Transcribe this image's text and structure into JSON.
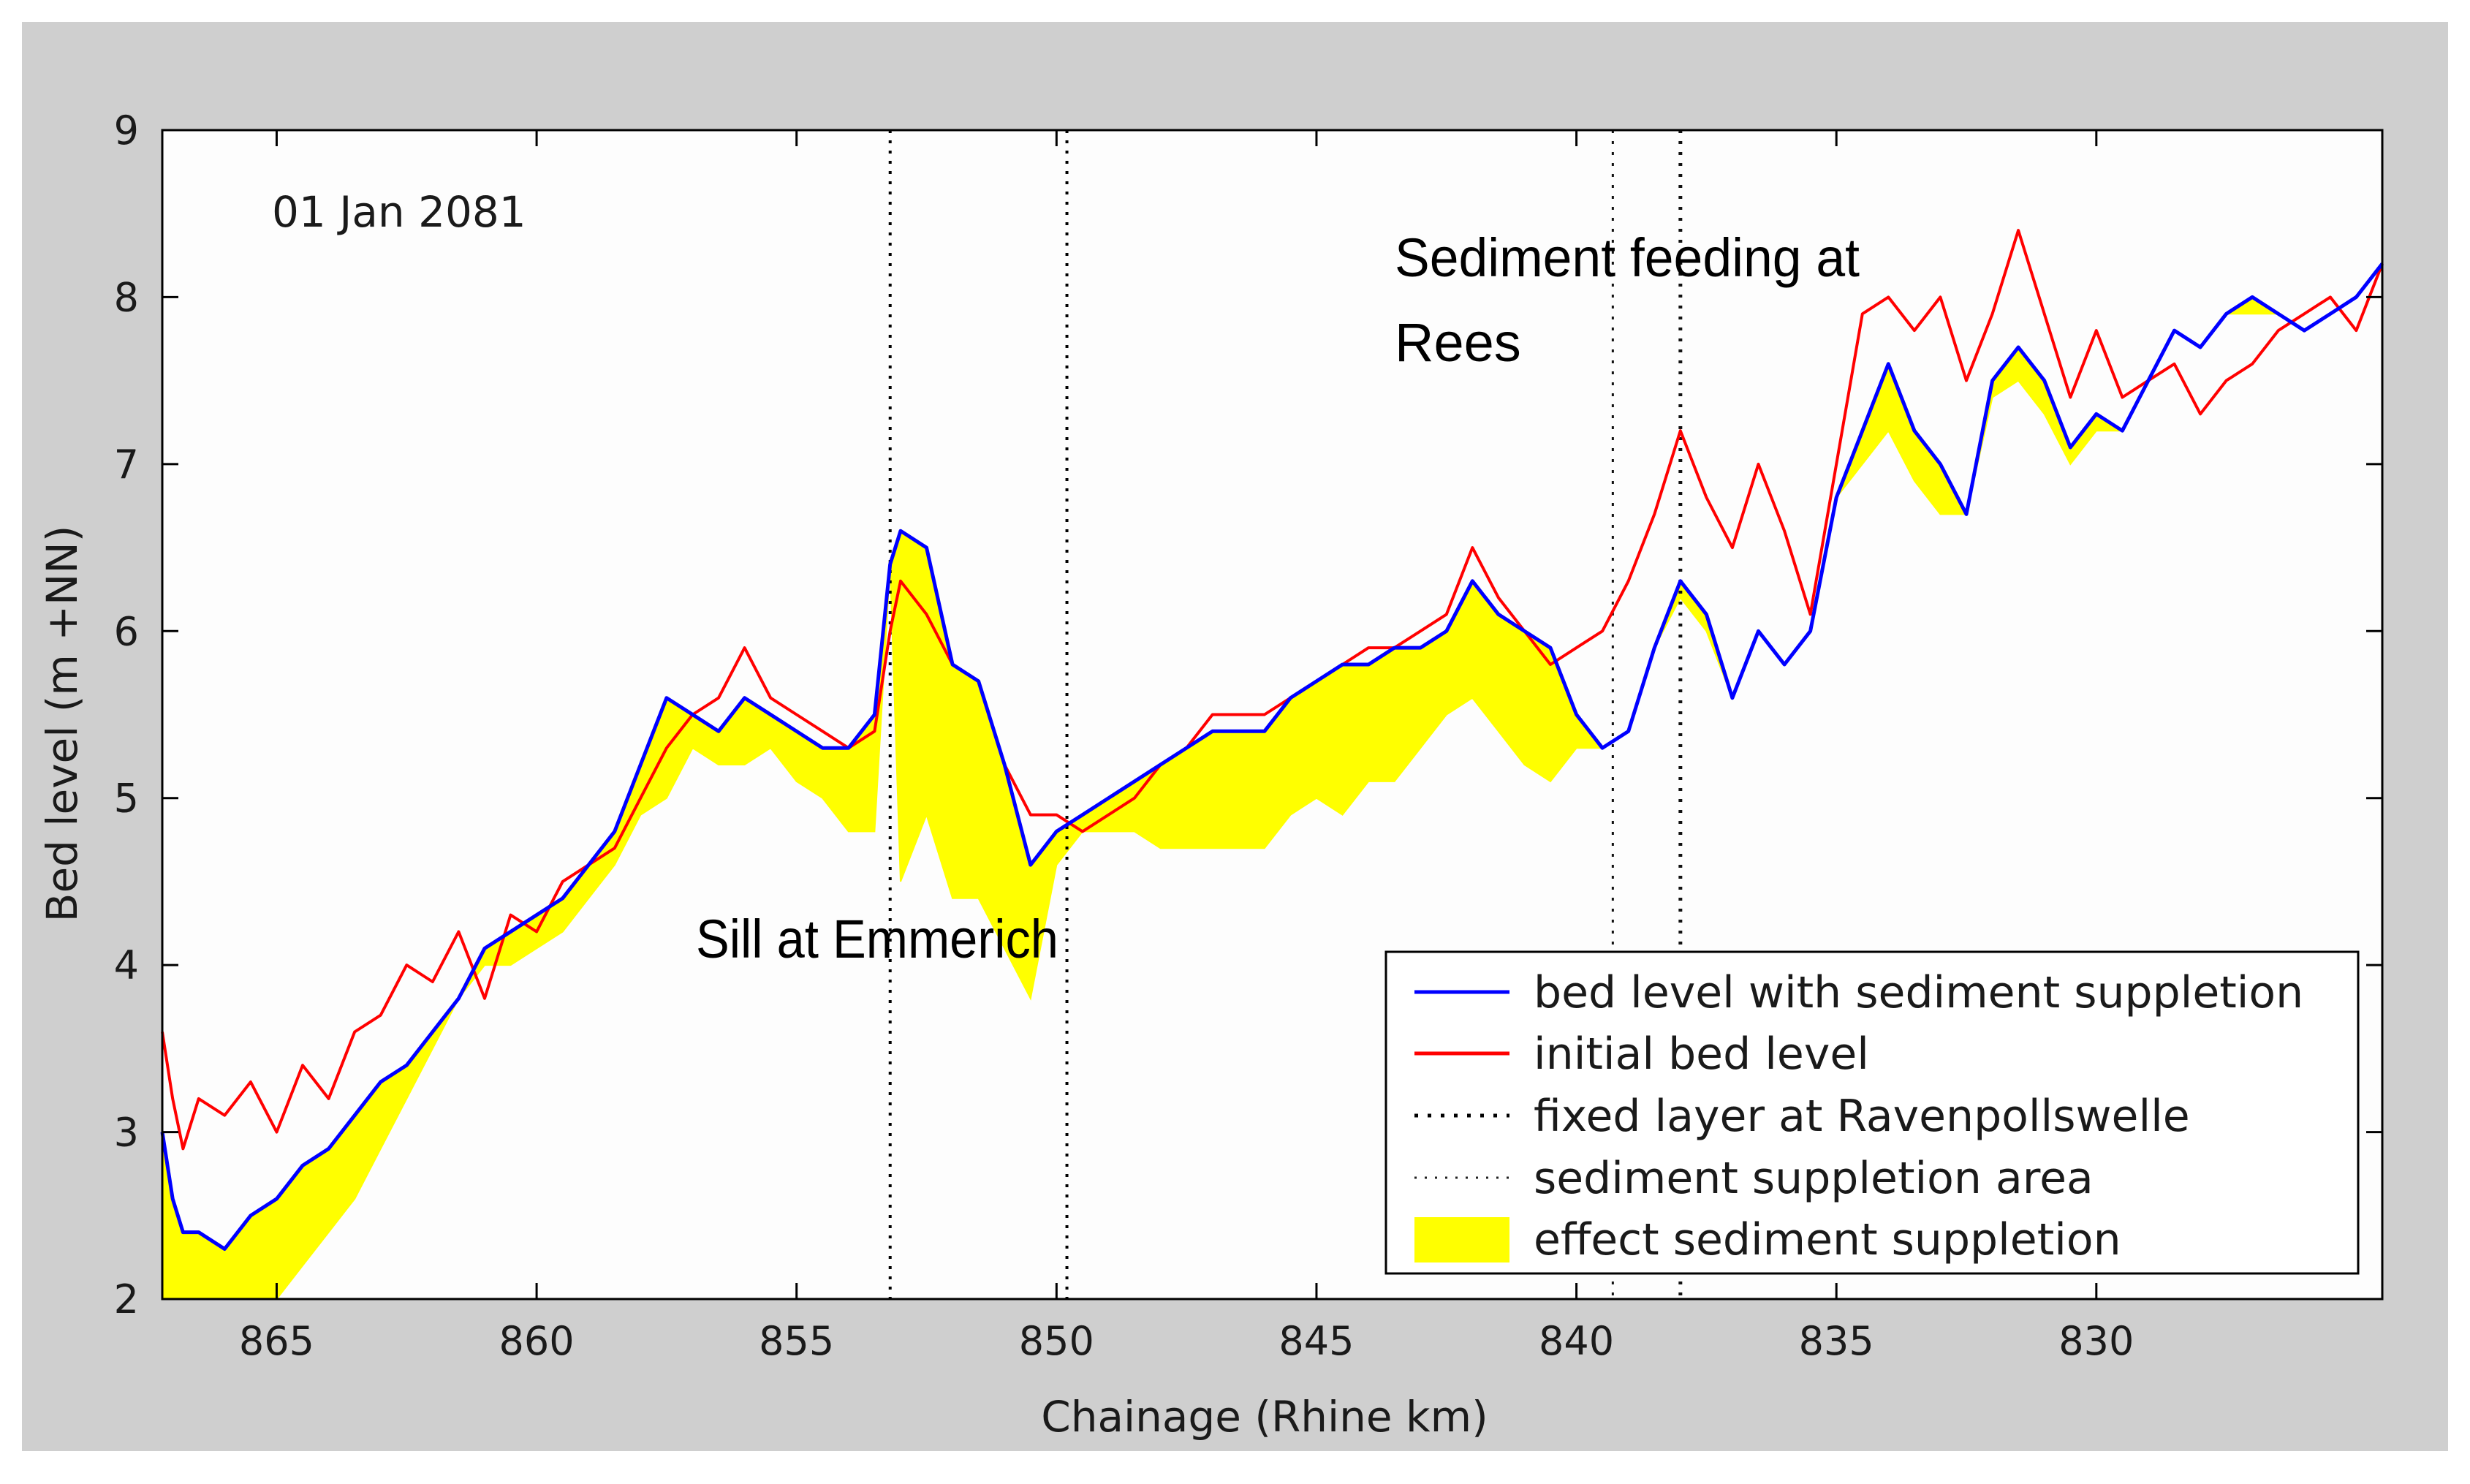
{
  "chart_data": {
    "type": "line",
    "date": "01 Jan 2081",
    "xlabel": "Chainage (Rhine km)",
    "ylabel": "Bed level (m +NN)",
    "xlim": [
      867.2,
      824.5
    ],
    "ylim": [
      2,
      9
    ],
    "x_ticks": [
      865,
      860,
      855,
      850,
      845,
      840,
      835,
      830
    ],
    "y_ticks": [
      2,
      3,
      4,
      5,
      6,
      7,
      8,
      9
    ],
    "annotations": [
      {
        "id": "sill",
        "text": "Sill at Emmerich"
      },
      {
        "id": "feeding1",
        "text": "Sediment feeding at"
      },
      {
        "id": "feeding2",
        "text": "Rees"
      }
    ],
    "vertical_lines": {
      "fixed_layer": [
        853.2,
        849.8
      ],
      "suppletion_area": [
        839.3,
        838.0
      ]
    },
    "colors": {
      "supplied": "#0000ff",
      "initial": "#ff0000",
      "effect": "#ffff00",
      "grid": "#000000"
    },
    "legend": [
      {
        "label": "bed level with sediment suppletion",
        "style": "blue-line"
      },
      {
        "label": "initial bed level",
        "style": "red-line"
      },
      {
        "label": "fixed layer at Ravenpollswelle",
        "style": "dotted-heavy"
      },
      {
        "label": "sediment suppletion area",
        "style": "dotted-light"
      },
      {
        "label": "effect sediment suppletion",
        "style": "yellow-patch"
      }
    ],
    "series": [
      {
        "name": "initial bed level",
        "x": [
          867.2,
          867,
          866.8,
          866.5,
          866,
          865.5,
          865,
          864.5,
          864,
          863.5,
          863,
          862.5,
          862,
          861.5,
          861,
          860.5,
          860,
          859.5,
          859,
          858.5,
          858,
          857.5,
          857,
          856.5,
          856,
          855.5,
          855,
          854.5,
          854,
          853.5,
          853.2,
          853,
          852.5,
          852,
          851.5,
          851,
          850.5,
          850,
          849.5,
          849,
          848.5,
          848,
          847.5,
          847,
          846.5,
          846,
          845.5,
          845,
          844.5,
          844,
          843.5,
          843,
          842.5,
          842,
          841.5,
          841,
          840.5,
          840,
          839.5,
          839,
          838.5,
          838,
          837.5,
          837,
          836.5,
          836,
          835.5,
          835,
          834.5,
          834,
          833.5,
          833,
          832.5,
          832,
          831.5,
          831,
          830.5,
          830,
          829.5,
          829,
          828.5,
          828,
          827.5,
          827,
          826.5,
          826,
          825.5,
          825,
          824.5
        ],
        "y": [
          3.6,
          3.2,
          2.9,
          3.2,
          3.1,
          3.3,
          3.0,
          3.4,
          3.2,
          3.6,
          3.7,
          4.0,
          3.9,
          4.2,
          3.8,
          4.3,
          4.2,
          4.5,
          4.6,
          4.7,
          5.0,
          5.3,
          5.5,
          5.6,
          5.9,
          5.6,
          5.5,
          5.4,
          5.3,
          5.4,
          6.0,
          6.3,
          6.1,
          5.8,
          5.7,
          5.2,
          4.9,
          4.9,
          4.8,
          4.9,
          5.0,
          5.2,
          5.3,
          5.5,
          5.5,
          5.5,
          5.6,
          5.7,
          5.8,
          5.9,
          5.9,
          6.0,
          6.1,
          6.5,
          6.2,
          6.0,
          5.8,
          5.9,
          6.0,
          6.3,
          6.7,
          7.2,
          6.8,
          6.5,
          7.0,
          6.6,
          6.1,
          7.0,
          7.9,
          8.0,
          7.8,
          8.0,
          7.5,
          7.9,
          8.4,
          7.9,
          7.4,
          7.8,
          7.4,
          7.5,
          7.6,
          7.3,
          7.5,
          7.6,
          7.8,
          7.9,
          8.0,
          7.8,
          8.2
        ]
      },
      {
        "name": "bed level with sediment suppletion",
        "x": [
          867.2,
          867,
          866.8,
          866.5,
          866,
          865.5,
          865,
          864.5,
          864,
          863.5,
          863,
          862.5,
          862,
          861.5,
          861,
          860.5,
          860,
          859.5,
          859,
          858.5,
          858,
          857.5,
          857,
          856.5,
          856,
          855.5,
          855,
          854.5,
          854,
          853.5,
          853.2,
          853,
          852.5,
          852,
          851.5,
          851,
          850.5,
          850,
          849.5,
          849,
          848.5,
          848,
          847.5,
          847,
          846.5,
          846,
          845.5,
          845,
          844.5,
          844,
          843.5,
          843,
          842.5,
          842,
          841.5,
          841,
          840.5,
          840,
          839.5,
          839,
          838.5,
          838,
          837.5,
          837,
          836.5,
          836,
          835.5,
          835,
          834.5,
          834,
          833.5,
          833,
          832.5,
          832,
          831.5,
          831,
          830.5,
          830,
          829.5,
          829,
          828.5,
          828,
          827.5,
          827,
          826.5,
          826,
          825.5,
          825,
          824.5
        ],
        "y": [
          3.0,
          2.6,
          2.4,
          2.4,
          2.3,
          2.5,
          2.6,
          2.8,
          2.9,
          3.1,
          3.3,
          3.4,
          3.6,
          3.8,
          4.1,
          4.2,
          4.3,
          4.4,
          4.6,
          4.8,
          5.2,
          5.6,
          5.5,
          5.4,
          5.6,
          5.5,
          5.4,
          5.3,
          5.3,
          5.5,
          6.4,
          6.6,
          6.5,
          5.8,
          5.7,
          5.2,
          4.6,
          4.8,
          4.9,
          5.0,
          5.1,
          5.2,
          5.3,
          5.4,
          5.4,
          5.4,
          5.6,
          5.7,
          5.8,
          5.8,
          5.9,
          5.9,
          6.0,
          6.3,
          6.1,
          6.0,
          5.9,
          5.5,
          5.3,
          5.4,
          5.9,
          6.3,
          6.1,
          5.6,
          6.0,
          5.8,
          6.0,
          6.8,
          7.2,
          7.6,
          7.2,
          7.0,
          6.7,
          7.5,
          7.7,
          7.5,
          7.1,
          7.3,
          7.2,
          7.5,
          7.8,
          7.7,
          7.9,
          8.0,
          7.9,
          7.8,
          7.9,
          8.0,
          8.2
        ]
      },
      {
        "name": "effect sediment suppletion (lower bound)",
        "x": [
          867.2,
          867,
          866.8,
          866.5,
          866,
          865.5,
          865,
          864.5,
          864,
          863.5,
          863,
          862.5,
          862,
          861.5,
          861,
          860.5,
          860,
          859.5,
          859,
          858.5,
          858,
          857.5,
          857,
          856.5,
          856,
          855.5,
          855,
          854.5,
          854,
          853.5,
          853.2,
          853,
          852.5,
          852,
          851.5,
          851,
          850.5,
          850,
          849.5,
          849,
          848.5,
          848,
          847.5,
          847,
          846.5,
          846,
          845.5,
          845,
          844.5,
          844,
          843.5,
          843,
          842.5,
          842,
          841.5,
          841,
          840.5,
          840,
          839.5,
          839,
          838.5,
          838,
          837.5,
          837,
          836.5,
          836,
          835.5,
          835,
          834.5,
          834,
          833.5,
          833,
          832.5,
          832,
          831.5,
          831,
          830.5,
          830,
          829.5,
          829,
          828.5,
          828,
          827.5,
          827,
          826.5,
          826,
          825.5,
          825,
          824.5
        ],
        "y": [
          2.0,
          2.0,
          2.0,
          2.0,
          2.0,
          2.0,
          2.0,
          2.2,
          2.4,
          2.6,
          2.9,
          3.2,
          3.5,
          3.8,
          4.0,
          4.0,
          4.1,
          4.2,
          4.4,
          4.6,
          4.9,
          5.0,
          5.3,
          5.2,
          5.2,
          5.3,
          5.1,
          5.0,
          4.8,
          4.8,
          6.4,
          4.5,
          4.9,
          4.4,
          4.4,
          4.1,
          3.8,
          4.6,
          4.8,
          4.8,
          4.8,
          4.7,
          4.7,
          4.7,
          4.7,
          4.7,
          4.9,
          5.0,
          4.9,
          5.1,
          5.1,
          5.3,
          5.5,
          5.6,
          5.4,
          5.2,
          5.1,
          5.3,
          5.3,
          5.4,
          5.9,
          6.2,
          6.0,
          5.6,
          6.0,
          5.8,
          6.0,
          6.8,
          7.0,
          7.2,
          6.9,
          6.7,
          6.7,
          7.4,
          7.5,
          7.3,
          7.0,
          7.2,
          7.2,
          7.5,
          7.8,
          7.7,
          7.9,
          7.9,
          7.9,
          7.8,
          7.9,
          8.0,
          8.2
        ]
      }
    ]
  }
}
